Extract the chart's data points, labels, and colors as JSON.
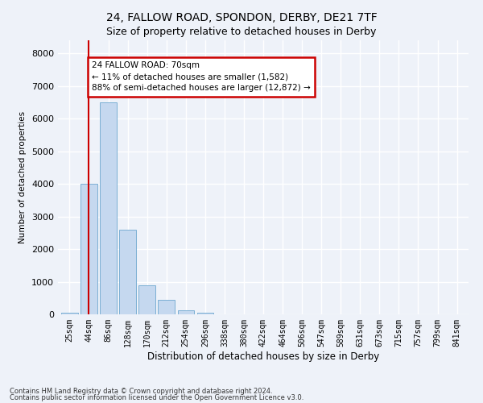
{
  "title1": "24, FALLOW ROAD, SPONDON, DERBY, DE21 7TF",
  "title2": "Size of property relative to detached houses in Derby",
  "xlabel": "Distribution of detached houses by size in Derby",
  "ylabel": "Number of detached properties",
  "categories": [
    "25sqm",
    "44sqm",
    "86sqm",
    "128sqm",
    "170sqm",
    "212sqm",
    "254sqm",
    "296sqm",
    "338sqm",
    "380sqm",
    "422sqm",
    "464sqm",
    "506sqm",
    "547sqm",
    "589sqm",
    "631sqm",
    "673sqm",
    "715sqm",
    "757sqm",
    "799sqm",
    "841sqm"
  ],
  "bar_heights": [
    50,
    4000,
    6500,
    2600,
    900,
    450,
    120,
    40,
    10,
    2,
    0,
    0,
    0,
    0,
    0,
    0,
    0,
    0,
    0,
    0,
    0
  ],
  "bar_color": "#c5d8ef",
  "bar_edge_color": "#7bafd4",
  "red_line_x": 1,
  "annotation_text": "24 FALLOW ROAD: 70sqm\n← 11% of detached houses are smaller (1,582)\n88% of semi-detached houses are larger (12,872) →",
  "annotation_box_facecolor": "#ffffff",
  "annotation_box_edgecolor": "#cc0000",
  "footnote1": "Contains HM Land Registry data © Crown copyright and database right 2024.",
  "footnote2": "Contains public sector information licensed under the Open Government Licence v3.0.",
  "bg_color": "#eef2f9",
  "plot_bg_color": "#eef2f9",
  "ylim": [
    0,
    8400
  ],
  "yticks": [
    0,
    1000,
    2000,
    3000,
    4000,
    5000,
    6000,
    7000,
    8000
  ],
  "grid_color": "#ffffff",
  "red_line_color": "#cc0000",
  "title1_fontsize": 10,
  "title2_fontsize": 9
}
